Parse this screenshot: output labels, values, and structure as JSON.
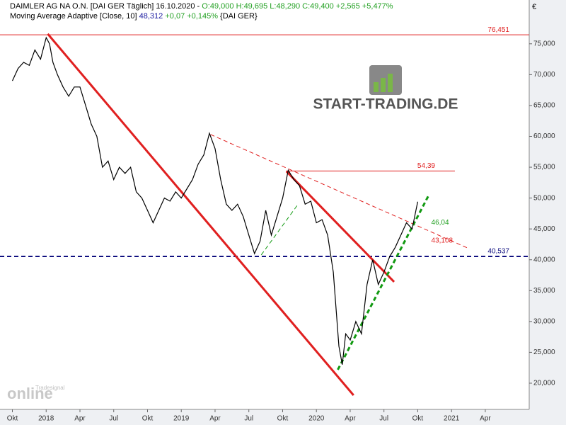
{
  "chart_data": {
    "type": "line",
    "header": {
      "parts": [
        {
          "text": "DAIMLER AG NA O.N. [DAI GER  Täglich] 16.10.2020 - ",
          "color": "#000000"
        },
        {
          "text": "O:49,000 H:49,695 L:48,290 C:49,400 +2,565 +5,477%",
          "color": "#22a022"
        }
      ],
      "indicator": [
        {
          "text": "Moving Average Adaptive [Close, 10] ",
          "color": "#000000"
        },
        {
          "text": "48,312",
          "color": "#1a1aa0"
        },
        {
          "text": " +0,07 +0,145%",
          "color": "#22a022"
        },
        {
          "text": " {DAI GER}",
          "color": "#000000"
        }
      ]
    },
    "currency": "€",
    "logo": "START-TRADING.DE",
    "watermark": [
      "Tradesignal",
      "online"
    ],
    "x": [
      0,
      0.5,
      1,
      1.5,
      2,
      2.5,
      3,
      3.3,
      3.6,
      4,
      4.5,
      5,
      5.5,
      6,
      6.5,
      7,
      7.5,
      8,
      8.5,
      9,
      9.5,
      10,
      10.5,
      11,
      11.5,
      12,
      12.5,
      13,
      13.5,
      14,
      14.5,
      15,
      15.5,
      16,
      16.5,
      17,
      17.5,
      18,
      18.5,
      19,
      19.5,
      20,
      20.5,
      21,
      21.5,
      22,
      22.5,
      23,
      23.5,
      24,
      24.5,
      25,
      25.5,
      26,
      26.5,
      27,
      27.5,
      28,
      28.5,
      29,
      29.3,
      29.6,
      30,
      30.5,
      31,
      31.5,
      32,
      32.5,
      33,
      33.5,
      34,
      34.5,
      35,
      35.5,
      36
    ],
    "series": [
      {
        "name": "DAIMLER AG NA O.N.",
        "color": "#000000",
        "values": [
          69000,
          71000,
          72000,
          71500,
          74000,
          72500,
          76000,
          75000,
          72000,
          70000,
          68000,
          66500,
          68000,
          68000,
          65000,
          62000,
          60000,
          55000,
          56000,
          53000,
          55000,
          54000,
          55000,
          51000,
          50000,
          48000,
          46000,
          48000,
          50000,
          49500,
          51000,
          50000,
          51500,
          53000,
          55500,
          57000,
          60500,
          58000,
          53000,
          49000,
          48000,
          49000,
          47000,
          44000,
          41000,
          43000,
          48000,
          44000,
          47000,
          50000,
          54500,
          53000,
          52000,
          49000,
          49500,
          46000,
          46500,
          44000,
          38000,
          26000,
          23000,
          28000,
          27000,
          30000,
          28000,
          36000,
          40000,
          36000,
          38000,
          40500,
          42000,
          44000,
          46000,
          45000,
          49400
        ]
      }
    ],
    "levels": [
      {
        "value": 76451,
        "label": "76,451",
        "color": "#e02020",
        "from": -1.1,
        "to": 45.9,
        "dashed": false
      },
      {
        "value": 54390,
        "label": "54,39",
        "color": "#e02020",
        "from": 24.3,
        "to": 39.3,
        "dashed": false
      },
      {
        "value": 40537,
        "label": "40,537",
        "color": "#101080",
        "from": -1.1,
        "to": 45.9,
        "dashed": true
      }
    ],
    "annotations": [
      {
        "x": 37.2,
        "y": 46040,
        "label": "46,04",
        "color": "#22a022"
      },
      {
        "x": 37.2,
        "y": 43108,
        "label": "43,108",
        "color": "#e02020"
      }
    ],
    "trendlines": [
      {
        "x": [
          3.14,
          30.3
        ],
        "y": [
          76600,
          18048
        ],
        "color": "#e02020",
        "width": 3,
        "dashed": false
      },
      {
        "x": [
          24.34,
          33.9
        ],
        "y": [
          54330,
          36420
        ],
        "color": "#e02020",
        "width": 3,
        "dashed": false
      },
      {
        "x": [
          17.6,
          40.4
        ],
        "y": [
          60300,
          41930
        ],
        "color": "#e02020",
        "width": 1,
        "dashed": true
      },
      {
        "x": [
          28.9,
          37.0
        ],
        "y": [
          22180,
          50540
        ],
        "color": "#119911",
        "width": 3,
        "dashed": true
      },
      {
        "x": [
          22.1,
          25.3
        ],
        "y": [
          40780,
          48820
        ],
        "color": "#119911",
        "width": 1,
        "dashed": true
      }
    ],
    "xlim": [
      -1.1,
      45.9
    ],
    "xticks": [
      {
        "value": 0,
        "label": "Okt"
      },
      {
        "value": 3,
        "label": "2018"
      },
      {
        "value": 6,
        "label": "Apr"
      },
      {
        "value": 9,
        "label": "Jul"
      },
      {
        "value": 12,
        "label": "Okt"
      },
      {
        "value": 15,
        "label": "2019"
      },
      {
        "value": 18,
        "label": "Apr"
      },
      {
        "value": 21,
        "label": "Jul"
      },
      {
        "value": 24,
        "label": "Okt"
      },
      {
        "value": 27,
        "label": "2020"
      },
      {
        "value": 30,
        "label": "Apr"
      },
      {
        "value": 33,
        "label": "Jul"
      },
      {
        "value": 36,
        "label": "Okt"
      },
      {
        "value": 39,
        "label": "2021"
      },
      {
        "value": 42,
        "label": "Apr"
      }
    ],
    "ylim": [
      15750,
      79800
    ],
    "yticks": [
      {
        "value": 20000,
        "label": "20,000"
      },
      {
        "value": 25000,
        "label": "25,000"
      },
      {
        "value": 30000,
        "label": "30,000"
      },
      {
        "value": 35000,
        "label": "35,000"
      },
      {
        "value": 40000,
        "label": "40,000"
      },
      {
        "value": 45000,
        "label": "45,000"
      },
      {
        "value": 50000,
        "label": "50,000"
      },
      {
        "value": 55000,
        "label": "55,000"
      },
      {
        "value": 60000,
        "label": "60,000"
      },
      {
        "value": 65000,
        "label": "65,000"
      },
      {
        "value": 70000,
        "label": "70,000"
      },
      {
        "value": 75000,
        "label": "75,000"
      }
    ]
  }
}
